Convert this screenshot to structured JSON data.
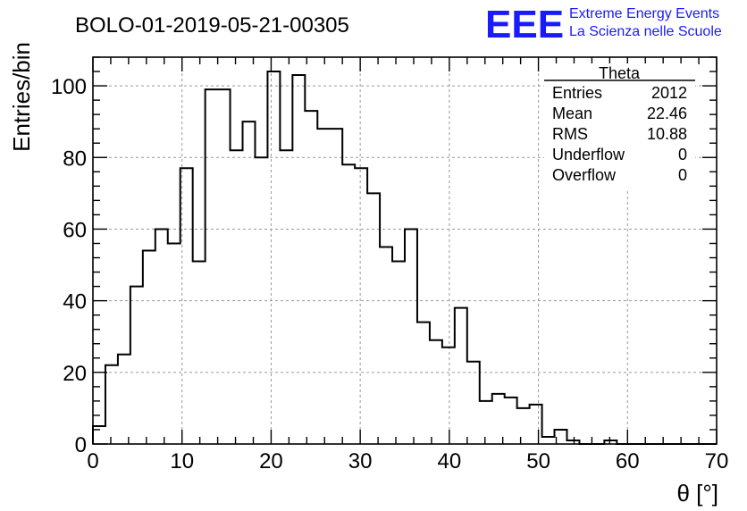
{
  "chart_data": {
    "type": "histogram",
    "title": "BOLO-01-2019-05-21-00305",
    "xlabel": "θ [°]",
    "ylabel": "Entries/bin",
    "xlim": [
      0,
      70
    ],
    "ylim": [
      0,
      108
    ],
    "grid": true,
    "bin_width": 1.4,
    "x_ticks": [
      0,
      10,
      20,
      30,
      40,
      50,
      60,
      70
    ],
    "y_ticks": [
      0,
      20,
      40,
      60,
      80,
      100
    ],
    "x_tick_labels": [
      "0",
      "10",
      "20",
      "30",
      "40",
      "50",
      "60",
      "70"
    ],
    "y_tick_labels": [
      "0",
      "20",
      "40",
      "60",
      "80",
      "100"
    ],
    "bin_edges": [
      0,
      1.4,
      2.8,
      4.2,
      5.6,
      7.0,
      8.4,
      9.8,
      11.2,
      12.6,
      14.0,
      15.4,
      16.8,
      18.2,
      19.6,
      21.0,
      22.4,
      23.8,
      25.2,
      26.6,
      28.0,
      29.4,
      30.8,
      32.2,
      33.6,
      35.0,
      36.4,
      37.8,
      39.2,
      40.6,
      42.0,
      43.4,
      44.8,
      46.2,
      47.6,
      49.0,
      50.4,
      51.8,
      53.2,
      54.6,
      56.0,
      57.4,
      58.8,
      60.2,
      61.6,
      63.0,
      64.4,
      65.8,
      67.2,
      68.6,
      70.0
    ],
    "values": [
      5,
      22,
      25,
      44,
      54,
      60,
      56,
      77,
      51,
      99,
      99,
      82,
      90,
      80,
      104,
      82,
      103,
      93,
      88,
      88,
      78,
      77,
      70,
      55,
      51,
      60,
      34,
      29,
      27,
      38,
      23,
      12,
      14,
      13,
      10,
      11,
      2,
      4,
      1,
      0,
      0,
      1,
      0,
      0,
      0,
      0,
      0,
      0,
      0,
      0
    ],
    "stats_box": {
      "title": "Theta",
      "rows": [
        {
          "label": "Entries",
          "value": "2012"
        },
        {
          "label": "Mean",
          "value": "22.46"
        },
        {
          "label": "RMS",
          "value": "10.88"
        },
        {
          "label": "Underflow",
          "value": "0"
        },
        {
          "label": "Overflow",
          "value": "0"
        }
      ]
    },
    "logo": {
      "text": "EEE",
      "line1": "Extreme Energy Events",
      "line2": "La Scienza nelle Scuole",
      "color": "#1a1aff"
    },
    "line_color": "#000000",
    "grid_color": "#999999"
  }
}
